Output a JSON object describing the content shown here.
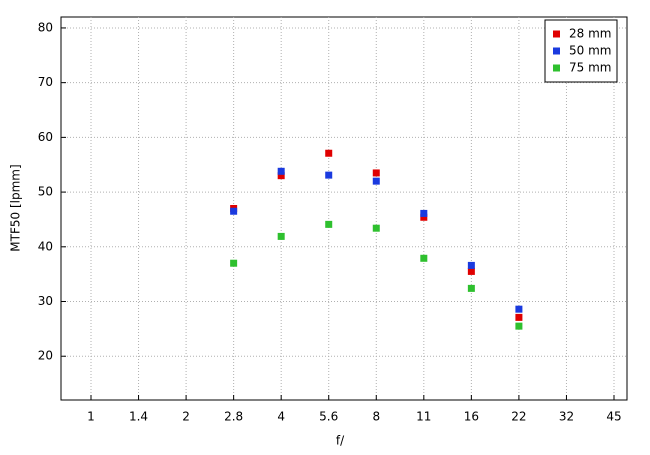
{
  "chart_data": {
    "type": "scatter",
    "xlabel": "f/",
    "ylabel": "MTF50 [lpmm]",
    "categories": [
      "1",
      "1.4",
      "2",
      "2.8",
      "4",
      "5.6",
      "8",
      "11",
      "16",
      "22",
      "32",
      "45"
    ],
    "series": [
      {
        "name": "28 mm",
        "color": "#e00000",
        "values": [
          null,
          null,
          null,
          47,
          53,
          57.1,
          53.5,
          45.4,
          35.5,
          27.1,
          null,
          null
        ]
      },
      {
        "name": "50 mm",
        "color": "#1a3adf",
        "values": [
          null,
          null,
          null,
          46.5,
          53.8,
          53.1,
          52,
          46.1,
          36.6,
          28.6,
          null,
          null
        ]
      },
      {
        "name": "75 mm",
        "color": "#2ec02e",
        "values": [
          null,
          null,
          null,
          37,
          41.9,
          44.1,
          43.4,
          37.9,
          32.4,
          25.5,
          null,
          null
        ]
      }
    ],
    "ylim": [
      12,
      82
    ],
    "yticks": [
      20,
      30,
      40,
      50,
      60,
      70,
      80
    ],
    "grid": true,
    "legend": "top-right"
  }
}
